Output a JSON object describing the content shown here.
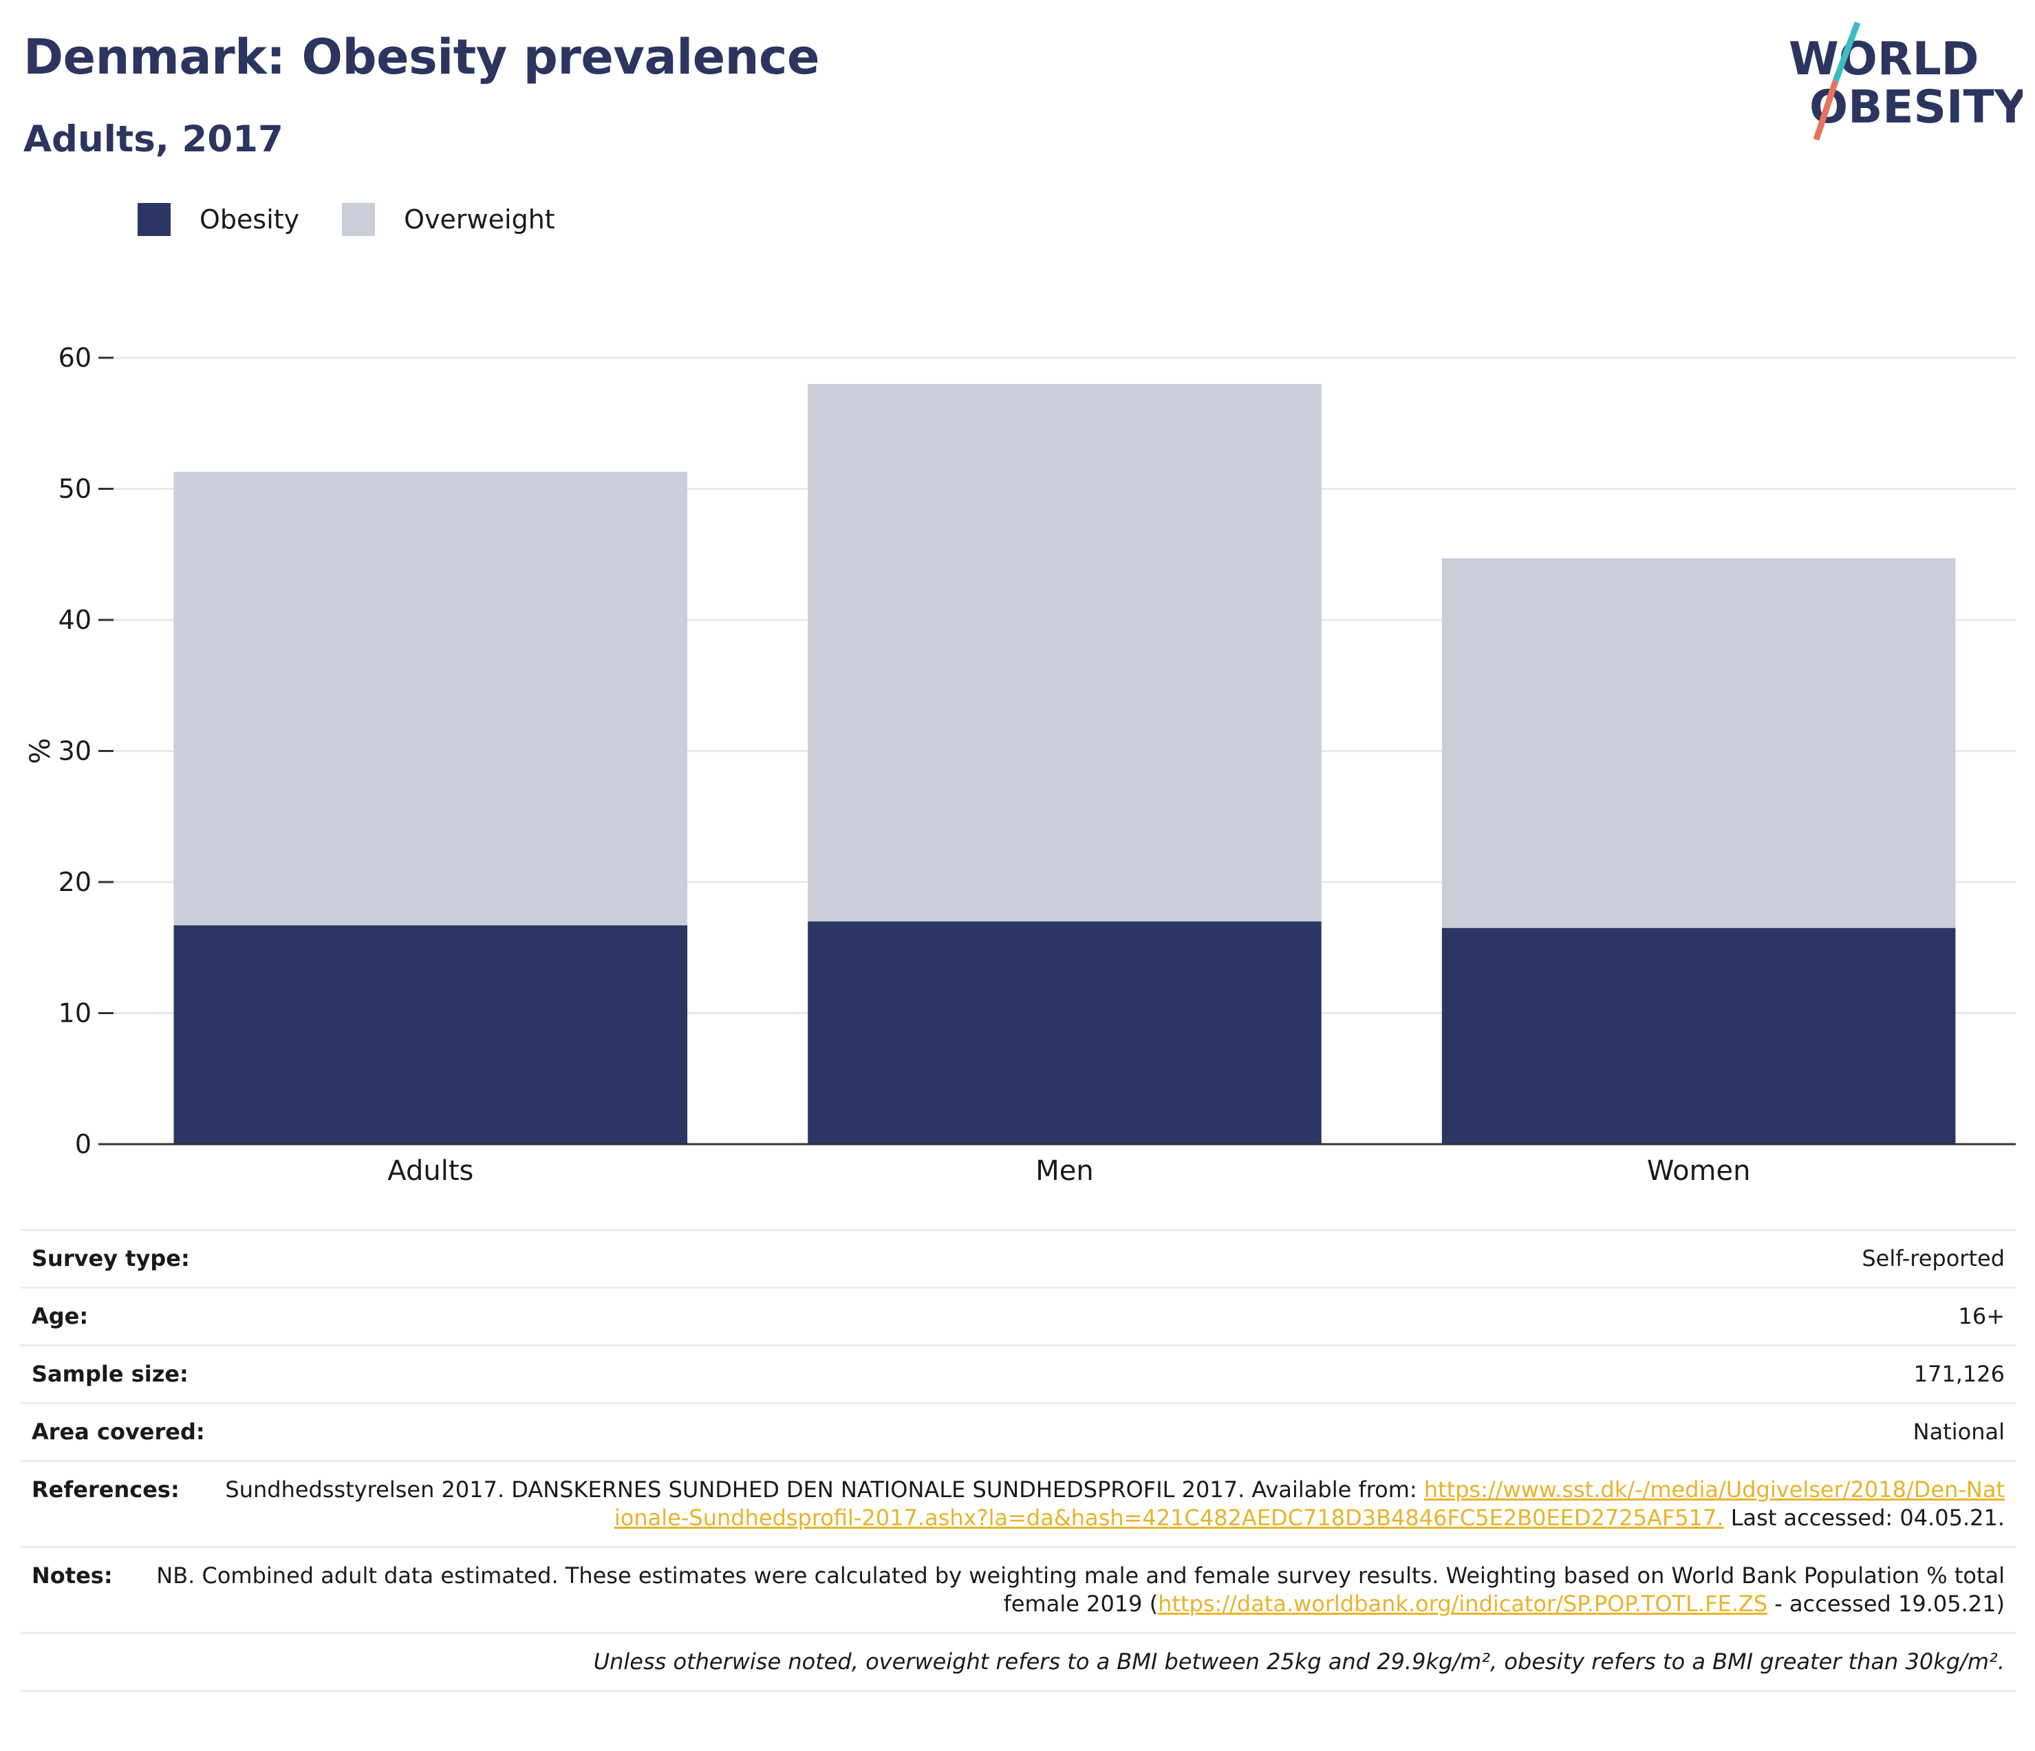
{
  "header": {
    "title": "Denmark: Obesity prevalence",
    "subtitle": "Adults, 2017"
  },
  "logo": {
    "line1": "WORLD",
    "line2": "OBESITY"
  },
  "colors": {
    "obesity": "#2b3664",
    "overweight": "#cbcdd8",
    "title": "#2b3560",
    "link": "#e8b32a"
  },
  "chart_data": {
    "type": "bar",
    "stacked": true,
    "categories": [
      "Adults",
      "Men",
      "Women"
    ],
    "series": [
      {
        "name": "Obesity",
        "values": [
          16.7,
          17.0,
          16.5
        ]
      },
      {
        "name": "Overweight",
        "values": [
          34.6,
          41.0,
          28.2
        ]
      }
    ],
    "ylabel": "%",
    "ylim": [
      0,
      60
    ],
    "yticks": [
      0,
      10,
      20,
      30,
      40,
      50,
      60
    ],
    "grid": true,
    "legend_position": "top-left"
  },
  "info": {
    "survey_type_label": "Survey type:",
    "survey_type_value": "Self-reported",
    "age_label": "Age:",
    "age_value": "16+",
    "sample_size_label": "Sample size:",
    "sample_size_value": "171,126",
    "area_label": "Area covered:",
    "area_value": "National",
    "references_label": "References:",
    "references_text": "Sundhedsstyrelsen 2017. DANSKERNES SUNDHED DEN NATIONALE SUNDHEDSPROFIL 2017. Available from: ",
    "references_link": "https://www.sst.dk/-/media/Udgivelser/2018/Den-Nationale-Sundhedsprofil-2017.ashx?la=da&hash=421C482AEDC718D3B4846FC5E2B0EED2725AF517.",
    "references_tail": " Last accessed: 04.05.21.",
    "notes_label": "Notes:",
    "notes_text": "NB. Combined adult data estimated. These estimates were calculated by weighting male and female survey results. Weighting based on World Bank Population % total female 2019 (",
    "notes_link": "https://data.worldbank.org/indicator/SP.POP.TOTL.FE.ZS",
    "notes_tail": " - accessed 19.05.21)",
    "footnote": "Unless otherwise noted, overweight refers to a BMI between 25kg and 29.9kg/m², obesity refers to a BMI greater than 30kg/m²."
  }
}
